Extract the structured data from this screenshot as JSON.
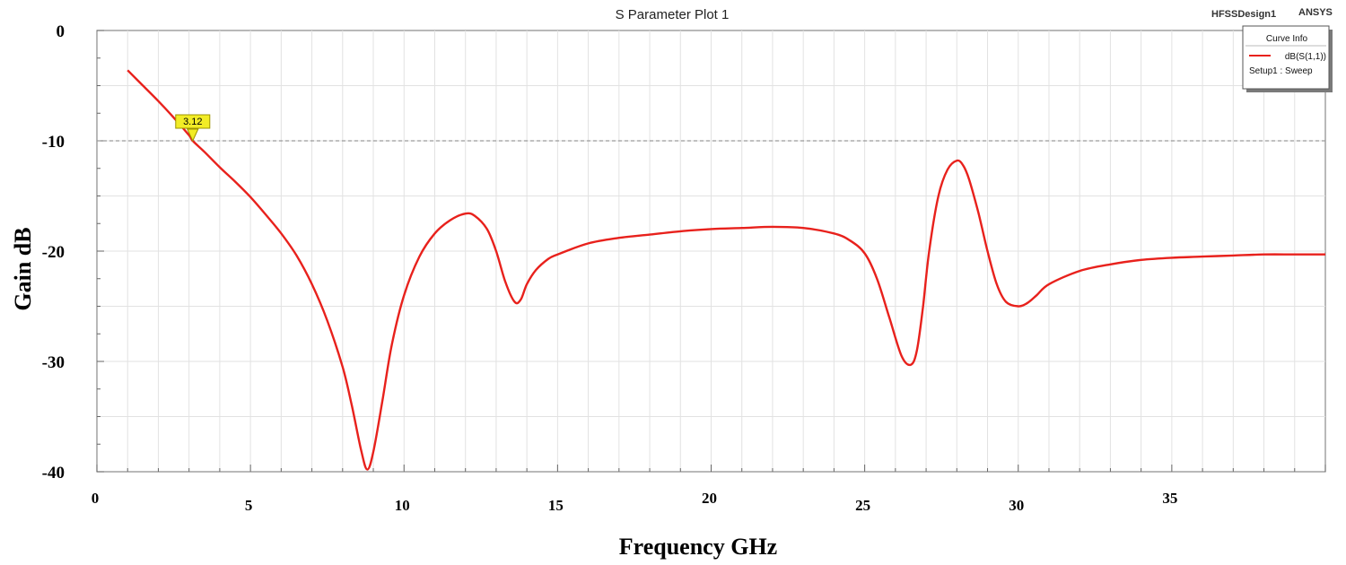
{
  "header": {
    "title": "S Parameter Plot 1",
    "design_name": "HFSSDesign1",
    "brand": "ANSYS"
  },
  "legend": {
    "title": "Curve Info",
    "entries": [
      {
        "name": "dB(S(1,1))",
        "color": "#e8211c"
      }
    ],
    "setup": "Setup1 : Sweep"
  },
  "marker": {
    "label": "3.12",
    "x": 3.12,
    "y": -10
  },
  "chart_data": {
    "type": "line",
    "title": "S Parameter Plot 1",
    "xlabel": "Frequency GHz",
    "ylabel": "Gain dB",
    "xlim": [
      0,
      40
    ],
    "ylim": [
      -40,
      0
    ],
    "x_ticks": [
      0,
      5,
      10,
      15,
      20,
      25,
      30,
      35
    ],
    "y_ticks": [
      0,
      -10,
      -20,
      -30,
      -40
    ],
    "grid": true,
    "legend_position": "top-right",
    "reference_line": {
      "y": -10,
      "style": "dashed",
      "color": "#9a9a9a"
    },
    "series": [
      {
        "name": "dB(S(1,1))",
        "color": "#e8211c",
        "x": [
          1,
          1.5,
          2,
          2.5,
          3,
          3.12,
          3.5,
          4,
          4.5,
          5,
          5.5,
          6,
          6.5,
          7,
          7.5,
          8,
          8.3,
          8.6,
          8.8,
          9,
          9.3,
          9.6,
          10,
          10.5,
          11,
          11.5,
          12,
          12.3,
          12.7,
          13,
          13.3,
          13.6,
          13.8,
          14,
          14.3,
          14.7,
          15,
          16,
          17,
          18,
          19,
          20,
          21,
          22,
          23,
          24,
          24.5,
          25,
          25.4,
          25.8,
          26.2,
          26.5,
          26.7,
          26.9,
          27.1,
          27.4,
          27.7,
          28,
          28.2,
          28.4,
          28.7,
          29,
          29.3,
          29.6,
          30,
          30.3,
          30.6,
          31,
          32,
          33,
          34,
          35,
          36,
          37,
          38,
          39,
          40
        ],
        "values": [
          -3.6,
          -5.0,
          -6.4,
          -7.9,
          -9.5,
          -10.0,
          -11.0,
          -12.4,
          -13.7,
          -15.1,
          -16.7,
          -18.4,
          -20.4,
          -23.0,
          -26.3,
          -30.5,
          -34.0,
          -38.0,
          -39.8,
          -38.2,
          -33.5,
          -28.5,
          -24.0,
          -20.5,
          -18.4,
          -17.2,
          -16.6,
          -16.8,
          -18.0,
          -20.0,
          -22.8,
          -24.6,
          -24.4,
          -23.0,
          -21.7,
          -20.7,
          -20.3,
          -19.3,
          -18.8,
          -18.5,
          -18.2,
          -18.0,
          -17.9,
          -17.8,
          -17.9,
          -18.4,
          -19.0,
          -20.2,
          -22.5,
          -26.0,
          -29.5,
          -30.3,
          -29.0,
          -25.0,
          -20.0,
          -15.0,
          -12.6,
          -11.8,
          -12.2,
          -13.5,
          -16.5,
          -20.0,
          -23.0,
          -24.6,
          -25.0,
          -24.7,
          -24.0,
          -23.0,
          -21.8,
          -21.2,
          -20.8,
          -20.6,
          -20.5,
          -20.4,
          -20.3,
          -20.3,
          -20.3
        ]
      }
    ]
  }
}
